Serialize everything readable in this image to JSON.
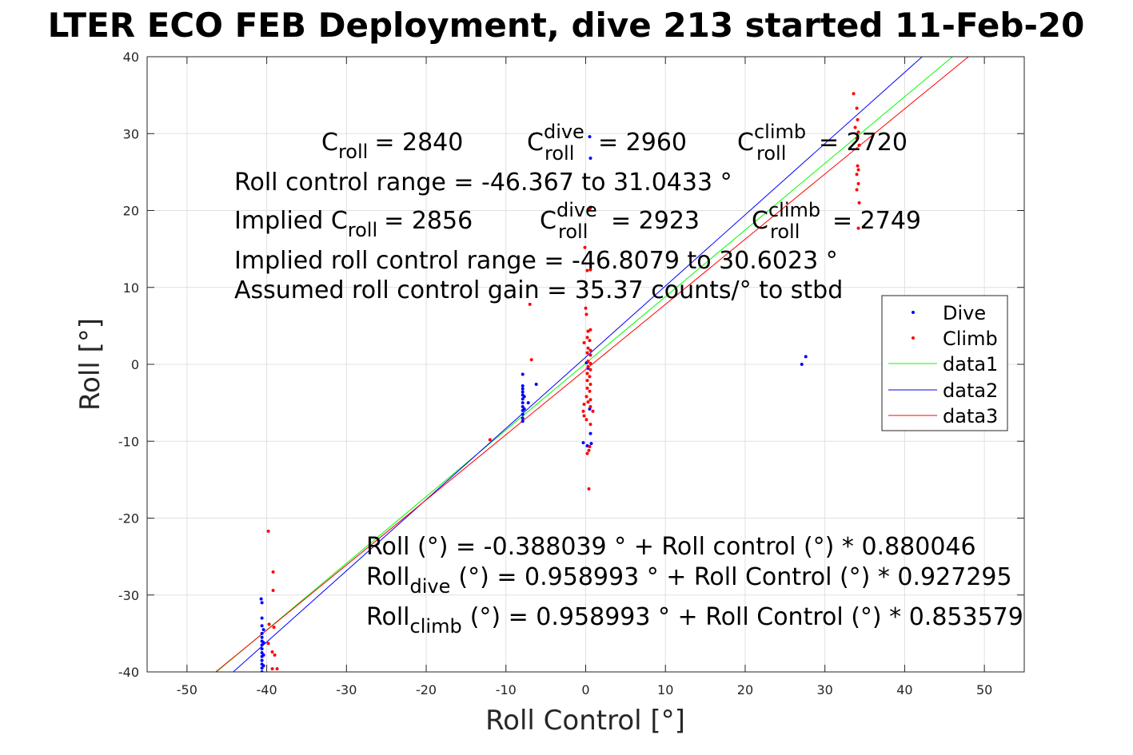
{
  "chart_data": {
    "type": "scatter",
    "title": "LTER ECO FEB Deployment, dive 213 started 11-Feb-20",
    "xlabel": "Roll Control [°]",
    "ylabel": "Roll [°]",
    "xlim": [
      -55,
      55
    ],
    "ylim": [
      -40,
      40
    ],
    "xticks": [
      -50,
      -40,
      -30,
      -20,
      -10,
      0,
      10,
      20,
      30,
      40,
      50
    ],
    "yticks": [
      -40,
      -30,
      -20,
      -10,
      0,
      10,
      20,
      30,
      40
    ],
    "xtick_labels": [
      "-50",
      "-40",
      "-30",
      "-20",
      "-10",
      "0",
      "10",
      "20",
      "30",
      "40",
      "50"
    ],
    "ytick_labels": [
      "-40",
      "-30",
      "-20",
      "-10",
      "0",
      "10",
      "20",
      "30",
      "40"
    ],
    "grid": true,
    "legend_position": "right",
    "series": [
      {
        "name": "Dive",
        "kind": "points",
        "color": "#0000ff",
        "points": [
          [
            -40.7,
            -30.5
          ],
          [
            -40.6,
            -31
          ],
          [
            -40.6,
            -33
          ],
          [
            -40.6,
            -34
          ],
          [
            -40.6,
            -35
          ],
          [
            -40.6,
            -35.5
          ],
          [
            -40.6,
            -36
          ],
          [
            -40.6,
            -36.5
          ],
          [
            -40.6,
            -37
          ],
          [
            -40.6,
            -37.5
          ],
          [
            -40.6,
            -38
          ],
          [
            -40.6,
            -38.5
          ],
          [
            -40.6,
            -39
          ],
          [
            -40.6,
            -39.5
          ],
          [
            -40.6,
            -40
          ],
          [
            -40.4,
            -34.5
          ],
          [
            -40.4,
            -36.2
          ],
          [
            -40.4,
            -37.8
          ],
          [
            -40.4,
            -39.2
          ],
          [
            -7.9,
            -1.3
          ],
          [
            -7.9,
            -2.8
          ],
          [
            -7.9,
            -3.2
          ],
          [
            -7.9,
            -3.6
          ],
          [
            -7.9,
            -4
          ],
          [
            -7.9,
            -4.5
          ],
          [
            -7.9,
            -5
          ],
          [
            -7.9,
            -5.5
          ],
          [
            -7.9,
            -6
          ],
          [
            -7.9,
            -6.5
          ],
          [
            -7.9,
            -7
          ],
          [
            -7.9,
            -7.4
          ],
          [
            -7.7,
            -4.2
          ],
          [
            -7.7,
            -5.8
          ],
          [
            -6.2,
            -2.6
          ],
          [
            -7.2,
            -5
          ],
          [
            0.5,
            29.6
          ],
          [
            0.6,
            26.8
          ],
          [
            0.6,
            20.4
          ],
          [
            0.1,
            0.2
          ],
          [
            0.3,
            -0.5
          ],
          [
            0.5,
            -5.8
          ],
          [
            0.6,
            -9
          ],
          [
            -0.3,
            -10.2
          ],
          [
            0.2,
            -10.6
          ],
          [
            0.7,
            -10.3
          ],
          [
            27.1,
            0
          ],
          [
            27.6,
            1
          ]
        ]
      },
      {
        "name": "Climb",
        "kind": "points",
        "color": "#ff0000",
        "points": [
          [
            -39.8,
            -21.7
          ],
          [
            -39.2,
            -27
          ],
          [
            -39.2,
            -29.4
          ],
          [
            -39.7,
            -33.8
          ],
          [
            -39.1,
            -34.2
          ],
          [
            -39.8,
            -36.3
          ],
          [
            -39.3,
            -37.4
          ],
          [
            -39.0,
            -37.8
          ],
          [
            -39.3,
            -39.6
          ],
          [
            -38.7,
            -39.6
          ],
          [
            -12.0,
            -9.8
          ],
          [
            -7.0,
            7.8
          ],
          [
            -6.8,
            0.6
          ],
          [
            0.5,
            20.2
          ],
          [
            0.2,
            12.2
          ],
          [
            0.6,
            12.3
          ],
          [
            -0.1,
            15.2
          ],
          [
            0.0,
            7.3
          ],
          [
            0.1,
            6.5
          ],
          [
            0.3,
            4.3
          ],
          [
            0.6,
            4.5
          ],
          [
            0.2,
            3.5
          ],
          [
            0.5,
            3.1
          ],
          [
            -0.2,
            2.8
          ],
          [
            0.3,
            2.1
          ],
          [
            0.6,
            1.8
          ],
          [
            0.2,
            1.5
          ],
          [
            0.6,
            1.2
          ],
          [
            0.3,
            0.4
          ],
          [
            0.6,
            0.1
          ],
          [
            0.3,
            -0.3
          ],
          [
            0.6,
            -0.7
          ],
          [
            0.2,
            -1.2
          ],
          [
            0.5,
            -1.6
          ],
          [
            0.2,
            -2.1
          ],
          [
            0.6,
            -2.6
          ],
          [
            0.2,
            -3.1
          ],
          [
            0.5,
            -3.5
          ],
          [
            0.1,
            -4.2
          ],
          [
            0.6,
            -4.6
          ],
          [
            0.3,
            -4.9
          ],
          [
            -0.2,
            -5.2
          ],
          [
            0.6,
            -5.5
          ],
          [
            -0.3,
            -6.1
          ],
          [
            0.9,
            -6.1
          ],
          [
            -0.2,
            -6.7
          ],
          [
            0.1,
            -7.2
          ],
          [
            0.6,
            -7.8
          ],
          [
            0.5,
            -10.7
          ],
          [
            0.4,
            -11.2
          ],
          [
            0.2,
            -11.6
          ],
          [
            0.4,
            -16.2
          ],
          [
            33.6,
            35.2
          ],
          [
            34.0,
            33.3
          ],
          [
            34.1,
            31.8
          ],
          [
            33.8,
            30.8
          ],
          [
            34.2,
            30.2
          ],
          [
            34.0,
            29.4
          ],
          [
            34.3,
            28.5
          ],
          [
            34.1,
            25.8
          ],
          [
            34.2,
            25.3
          ],
          [
            34.0,
            24.7
          ],
          [
            34.2,
            23.5
          ],
          [
            34.0,
            22.7
          ],
          [
            34.3,
            21
          ],
          [
            34.2,
            17.7
          ]
        ]
      },
      {
        "name": "data1",
        "kind": "line",
        "color": "#00ff00",
        "x": [
          -46.3,
          46.0
        ],
        "y": [
          -40,
          40
        ]
      },
      {
        "name": "data2",
        "kind": "line",
        "color": "#0000ff",
        "x": [
          -44.2,
          42.2
        ],
        "y": [
          -40,
          40
        ]
      },
      {
        "name": "data3",
        "kind": "line",
        "color": "#ff0000",
        "x": [
          -46.4,
          48.0
        ],
        "y": [
          -40,
          40
        ]
      }
    ],
    "annotations": {
      "c_roll": "= 2840",
      "c_roll_dive": "= 2960",
      "c_roll_climb": "= 2720",
      "roll_control_range": "Roll control range = -46.367 to 31.0433 °",
      "implied_prefix": "Implied C",
      "implied_c_roll": "= 2856",
      "implied_c_roll_dive": "= 2923",
      "implied_c_roll_climb": "= 2749",
      "implied_range": "Implied roll control range = -46.8079 to 30.6023 °",
      "assumed_gain": "Assumed roll control gain = 35.37 counts/° to stbd",
      "fit_all": "Roll (°) = -0.388039 ° + Roll control (°) * 0.880046",
      "fit_dive": "(°) = 0.958993 ° + Roll Control (°) * 0.927295",
      "fit_climb": "(°) = 0.958993 ° + Roll Control (°) * 0.853579",
      "C": "C",
      "Roll": "Roll",
      "sub_roll": "roll",
      "sup_dive": "dive",
      "sup_climb": "climb",
      "sub_dive": "dive",
      "sub_climb": "climb"
    }
  }
}
